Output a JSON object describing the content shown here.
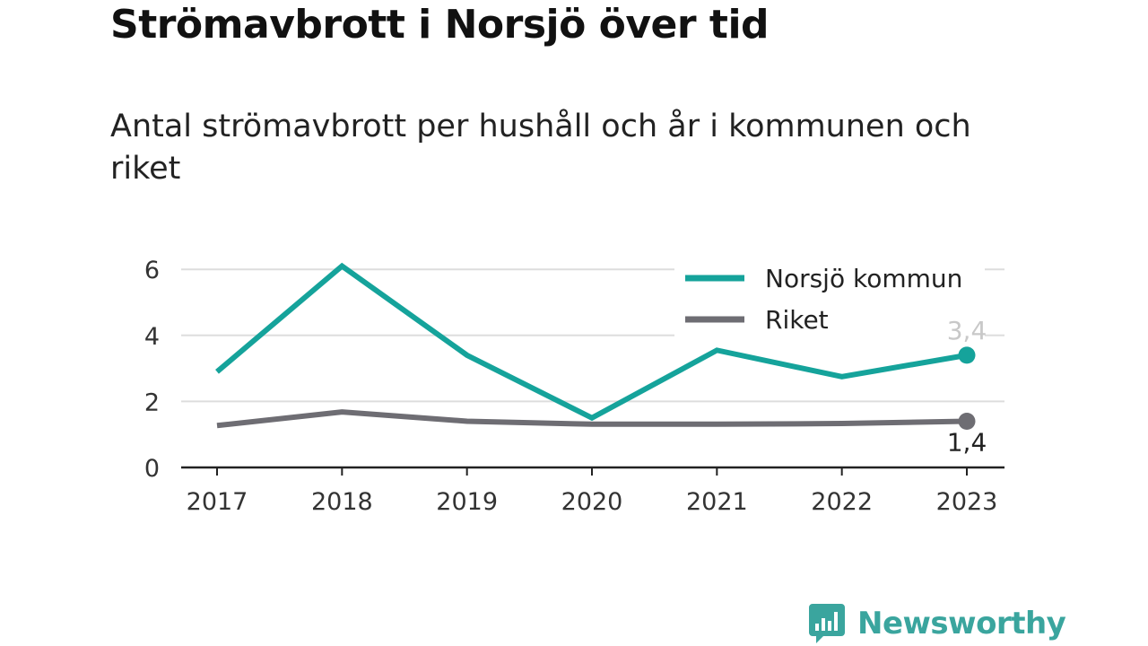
{
  "header": {
    "title": "Strömavbrott i Norsjö över tid",
    "subtitle": "Antal strömavbrott per hushåll och år i kommunen och riket"
  },
  "chart_data": {
    "type": "line",
    "x": [
      "2017",
      "2018",
      "2019",
      "2020",
      "2021",
      "2022",
      "2023"
    ],
    "y_ticks": [
      "0",
      "2",
      "4",
      "6"
    ],
    "ylim": [
      0,
      6.5
    ],
    "grid": true,
    "legend_position": "top-right",
    "series": [
      {
        "name": "Norsjö kommun",
        "color": "#15a39b",
        "values": [
          2.9,
          6.1,
          3.4,
          1.5,
          3.55,
          2.75,
          3.4
        ],
        "end_label": "3,4",
        "end_label_color": "#c8c8c8"
      },
      {
        "name": "Riket",
        "color": "#6e6d73",
        "values": [
          1.27,
          1.68,
          1.4,
          1.31,
          1.31,
          1.33,
          1.4
        ],
        "end_label": "1,4",
        "end_label_color": "#222222"
      }
    ]
  },
  "brand": {
    "name": "Newsworthy",
    "icon": "newsworthy-chart-bubble-icon",
    "color": "#3aa59e"
  }
}
